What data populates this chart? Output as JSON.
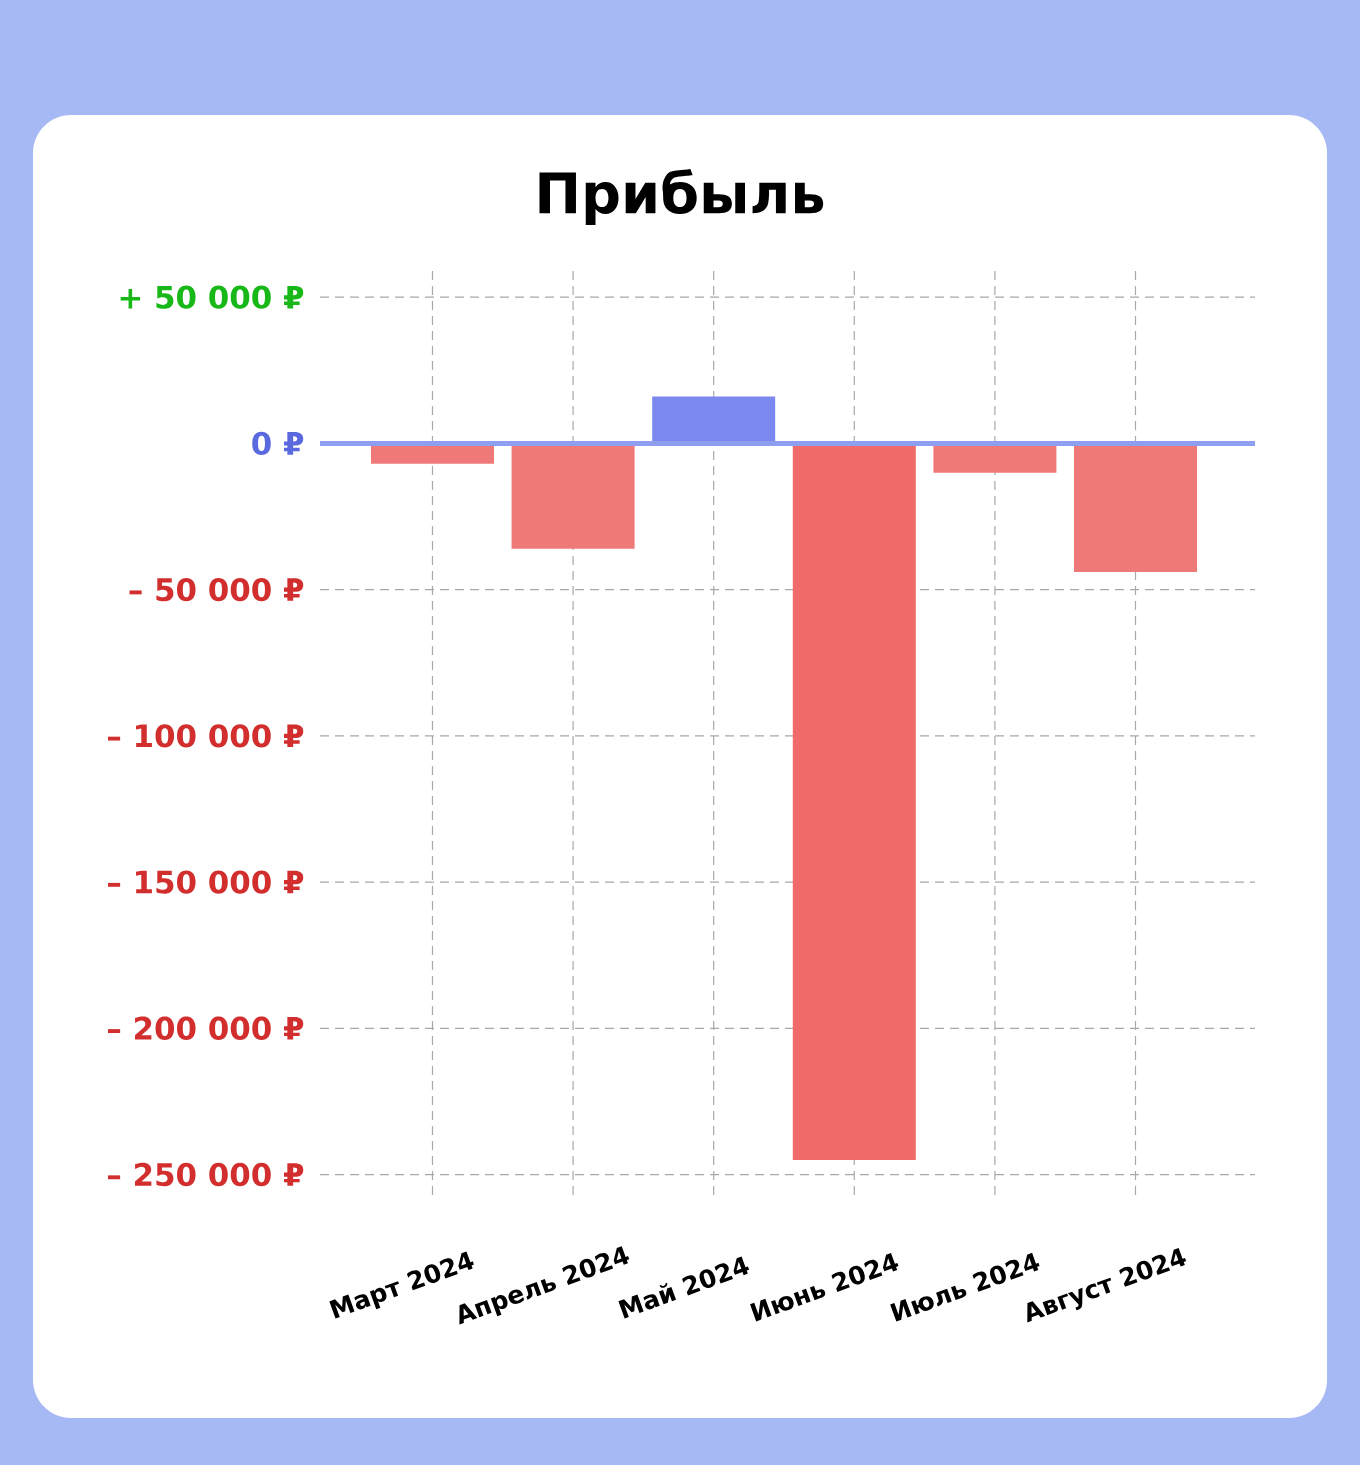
{
  "chart_data": {
    "type": "bar",
    "title": "Прибыль",
    "categories": [
      "Март 2024",
      "Апрель 2024",
      "Май 2024",
      "Июнь 2024",
      "Июль 2024",
      "Август 2024"
    ],
    "values": [
      -7000,
      -36000,
      16000,
      -245000,
      -10000,
      -44000
    ],
    "colors": [
      "#ef7878",
      "#ef7878",
      "#7b88ee",
      "#f06a6a",
      "#ef7878",
      "#ef7878"
    ],
    "ylim": [
      -257000,
      61000
    ],
    "yticks": [
      {
        "value": 50000,
        "label": "+ 50 000 ₽"
      },
      {
        "value": 0,
        "label": "0 ₽"
      },
      {
        "value": -50000,
        "label": "– 50 000 ₽"
      },
      {
        "value": -100000,
        "label": "– 100 000 ₽"
      },
      {
        "value": -150000,
        "label": "– 150 000 ₽"
      },
      {
        "value": -200000,
        "label": "– 200 000 ₽"
      },
      {
        "value": -250000,
        "label": "– 250 000 ₽"
      }
    ],
    "grid": true,
    "ref_lines": [
      {
        "axis": "y",
        "value": 0,
        "color": "#8e9ff2"
      }
    ]
  }
}
